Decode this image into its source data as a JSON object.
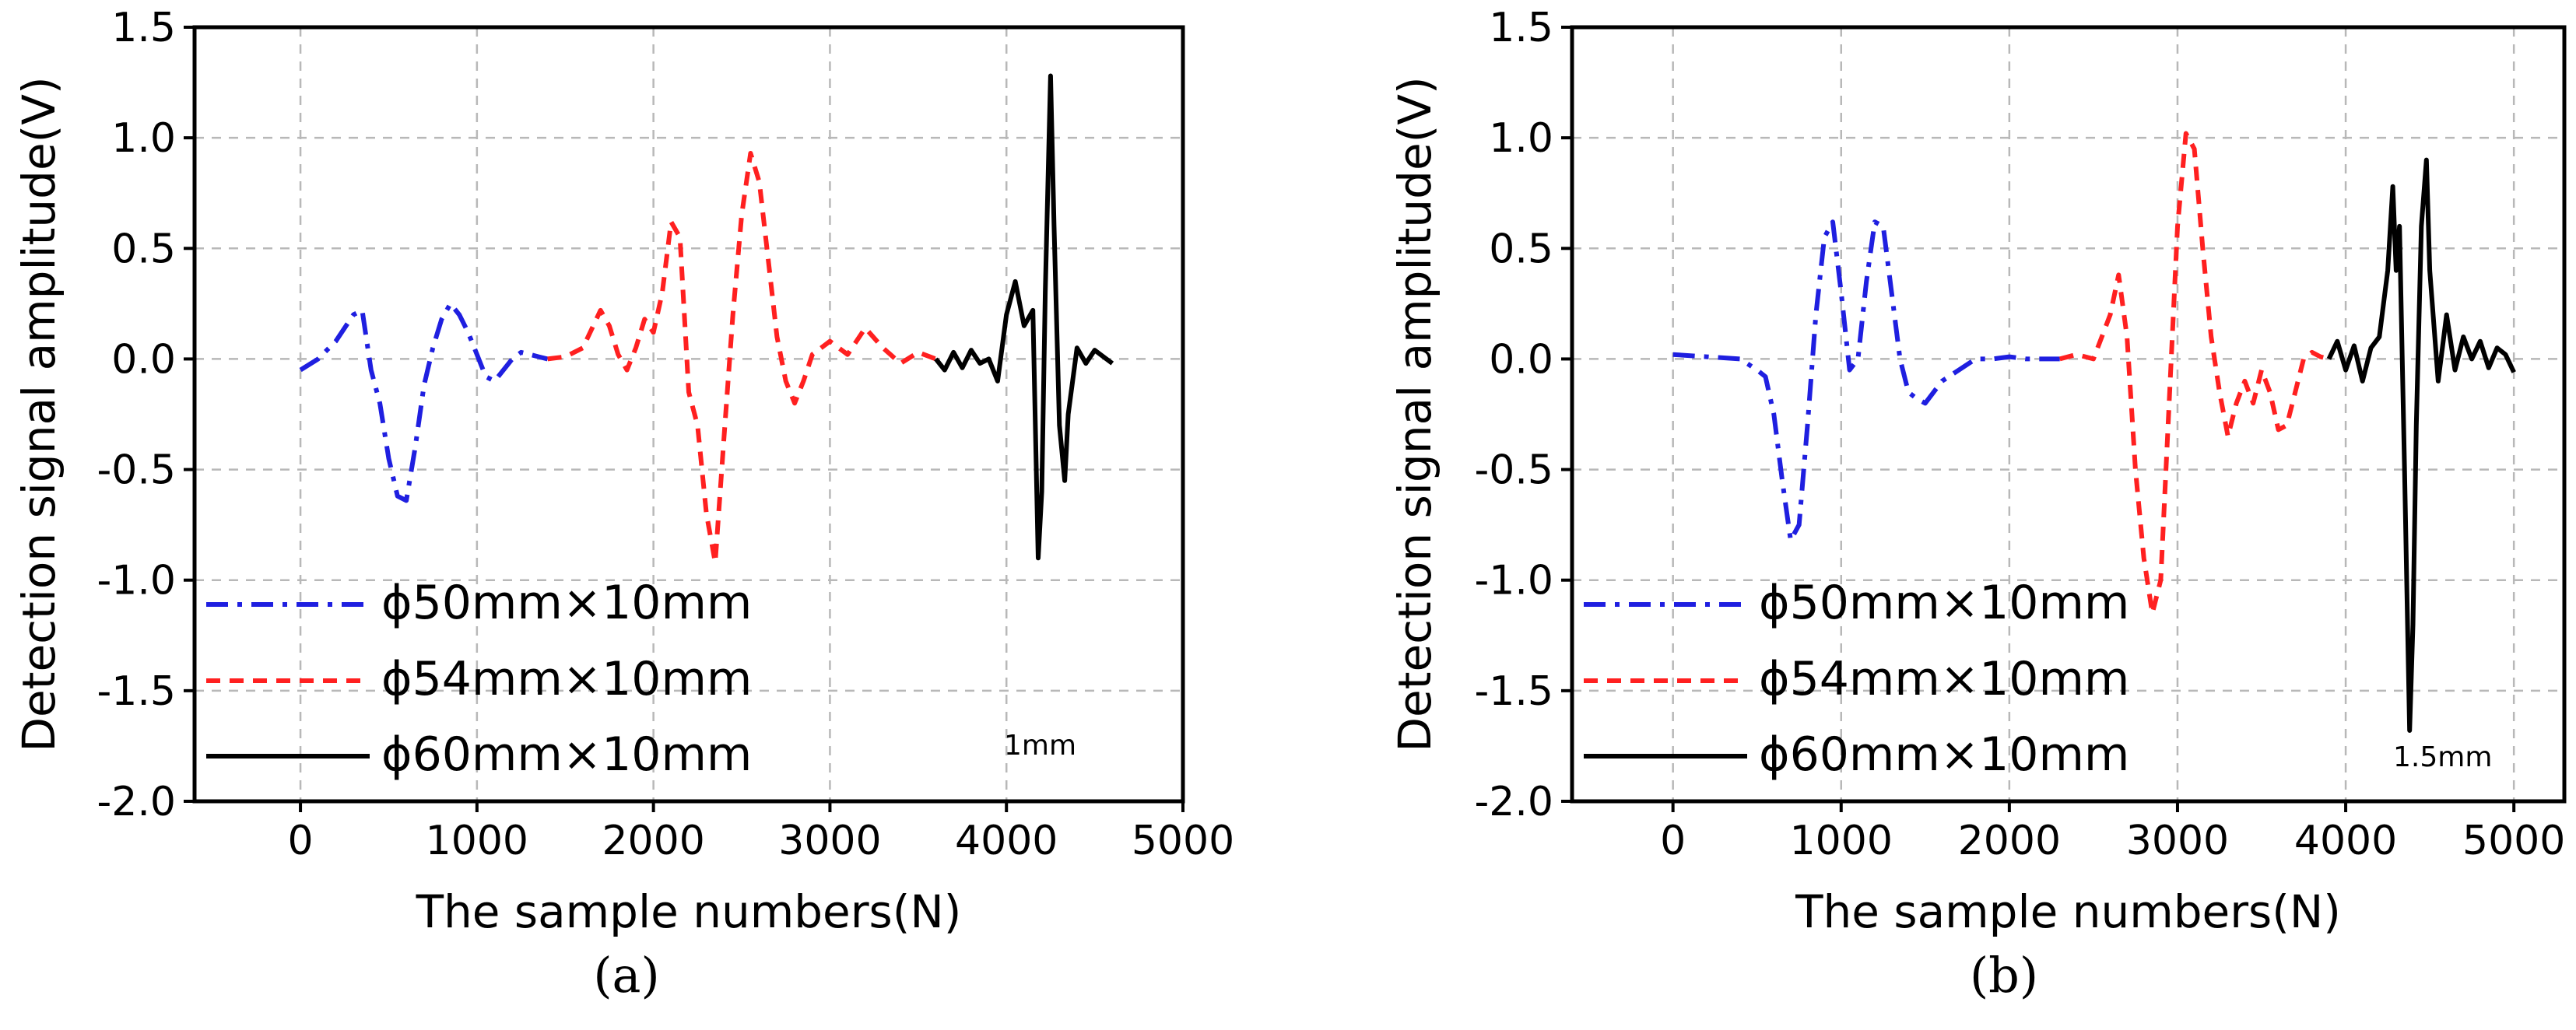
{
  "chart_data": [
    {
      "type": "line",
      "panel_label": "(a)",
      "title": "",
      "xlabel": "The sample numbers(N)",
      "ylabel": "Detection signal amplitude(V)",
      "xlim": [
        -600,
        5000
      ],
      "ylim": [
        -2.0,
        1.5
      ],
      "xticks": [
        0,
        1000,
        2000,
        3000,
        4000,
        5000
      ],
      "yticks": [
        -2.0,
        -1.5,
        -1.0,
        -0.5,
        0.0,
        0.5,
        1.0,
        1.5
      ],
      "xtick_labels": [
        "0",
        "1000",
        "2000",
        "3000",
        "4000",
        "5000"
      ],
      "ytick_labels": [
        "-2.0",
        "-1.5",
        "-1.0",
        "-0.5",
        "0.0",
        "0.5",
        "1.0",
        "1.5"
      ],
      "grid": true,
      "legend_position": "bottom-left",
      "annotation": "1mm",
      "series": [
        {
          "name": "ϕ50mm×10mm",
          "color": "#1f1fe0",
          "style": "dashdot",
          "x": [
            0,
            100,
            200,
            300,
            350,
            400,
            450,
            500,
            550,
            600,
            650,
            700,
            750,
            800,
            850,
            900,
            950,
            1000,
            1050,
            1100,
            1150,
            1200,
            1250,
            1300,
            1350,
            1400
          ],
          "y": [
            -0.05,
            0.0,
            0.08,
            0.2,
            0.22,
            -0.05,
            -0.2,
            -0.45,
            -0.62,
            -0.64,
            -0.4,
            -0.12,
            0.05,
            0.18,
            0.25,
            0.2,
            0.12,
            0.02,
            -0.08,
            -0.1,
            -0.05,
            0.0,
            0.03,
            0.02,
            0.01,
            0.0
          ]
        },
        {
          "name": "ϕ54mm×10mm",
          "color": "#ff2020",
          "style": "dashed",
          "x": [
            1400,
            1500,
            1600,
            1700,
            1750,
            1800,
            1850,
            1900,
            1950,
            2000,
            2050,
            2100,
            2150,
            2200,
            2250,
            2300,
            2350,
            2400,
            2450,
            2500,
            2550,
            2600,
            2650,
            2700,
            2750,
            2800,
            2850,
            2900,
            3000,
            3100,
            3200,
            3300,
            3400,
            3500,
            3600
          ],
          "y": [
            0.0,
            0.01,
            0.05,
            0.22,
            0.15,
            0.02,
            -0.05,
            0.05,
            0.18,
            0.12,
            0.3,
            0.62,
            0.55,
            -0.15,
            -0.3,
            -0.7,
            -0.92,
            -0.35,
            0.2,
            0.65,
            0.93,
            0.8,
            0.45,
            0.1,
            -0.1,
            -0.2,
            -0.1,
            0.02,
            0.08,
            0.02,
            0.14,
            0.05,
            -0.02,
            0.03,
            0.0
          ]
        },
        {
          "name": "ϕ60mm×10mm",
          "color": "#000000",
          "style": "solid",
          "x": [
            3600,
            3650,
            3700,
            3750,
            3800,
            3850,
            3900,
            3950,
            4000,
            4050,
            4100,
            4150,
            4180,
            4200,
            4220,
            4250,
            4270,
            4300,
            4330,
            4350,
            4400,
            4450,
            4500,
            4550,
            4600
          ],
          "y": [
            0.0,
            -0.05,
            0.03,
            -0.04,
            0.04,
            -0.02,
            0.0,
            -0.1,
            0.2,
            0.35,
            0.15,
            0.22,
            -0.9,
            -0.6,
            0.3,
            1.28,
            0.6,
            -0.3,
            -0.55,
            -0.25,
            0.05,
            -0.02,
            0.04,
            0.01,
            -0.02
          ]
        }
      ]
    },
    {
      "type": "line",
      "panel_label": "(b)",
      "title": "",
      "xlabel": "The sample numbers(N)",
      "ylabel": "Detection signal amplitude(V)",
      "xlim": [
        -600,
        5300
      ],
      "ylim": [
        -2.0,
        1.5
      ],
      "xticks": [
        0,
        1000,
        2000,
        3000,
        4000,
        5000
      ],
      "yticks": [
        -2.0,
        -1.5,
        -1.0,
        -0.5,
        0.0,
        0.5,
        1.0,
        1.5
      ],
      "xtick_labels": [
        "0",
        "1000",
        "2000",
        "3000",
        "4000",
        "5000"
      ],
      "ytick_labels": [
        "-2.0",
        "-1.5",
        "-1.0",
        "-0.5",
        "0.0",
        "0.5",
        "1.0",
        "1.5"
      ],
      "grid": true,
      "legend_position": "bottom-left",
      "annotation": "1.5mm",
      "series": [
        {
          "name": "ϕ50mm×10mm",
          "color": "#1f1fe0",
          "style": "dashdot",
          "x": [
            0,
            200,
            400,
            500,
            550,
            600,
            650,
            700,
            750,
            800,
            850,
            900,
            950,
            1000,
            1050,
            1100,
            1150,
            1200,
            1250,
            1300,
            1350,
            1400,
            1450,
            1500,
            1550,
            1600,
            1700,
            1800,
            1900,
            2000,
            2100,
            2200,
            2300
          ],
          "y": [
            0.02,
            0.01,
            0.0,
            -0.05,
            -0.08,
            -0.25,
            -0.55,
            -0.82,
            -0.75,
            -0.3,
            0.2,
            0.55,
            0.62,
            0.3,
            -0.05,
            0.0,
            0.35,
            0.62,
            0.6,
            0.3,
            0.0,
            -0.15,
            -0.18,
            -0.2,
            -0.15,
            -0.1,
            -0.05,
            0.0,
            0.0,
            0.01,
            0.0,
            0.0,
            0.0
          ]
        },
        {
          "name": "ϕ54mm×10mm",
          "color": "#ff2020",
          "style": "dashed",
          "x": [
            2300,
            2400,
            2500,
            2600,
            2650,
            2700,
            2750,
            2800,
            2850,
            2900,
            2950,
            3000,
            3050,
            3100,
            3150,
            3200,
            3250,
            3300,
            3350,
            3400,
            3450,
            3500,
            3550,
            3600,
            3650,
            3700,
            3750,
            3800,
            3850,
            3900
          ],
          "y": [
            0.0,
            0.02,
            0.0,
            0.2,
            0.38,
            0.1,
            -0.5,
            -0.9,
            -1.15,
            -1.0,
            -0.2,
            0.6,
            1.02,
            0.95,
            0.5,
            0.1,
            -0.15,
            -0.35,
            -0.2,
            -0.1,
            -0.2,
            -0.05,
            -0.15,
            -0.32,
            -0.3,
            -0.15,
            0.0,
            0.03,
            0.01,
            0.0
          ]
        },
        {
          "name": "ϕ60mm×10mm",
          "color": "#000000",
          "style": "solid",
          "x": [
            3900,
            3950,
            4000,
            4050,
            4100,
            4150,
            4200,
            4250,
            4280,
            4300,
            4320,
            4350,
            4380,
            4400,
            4420,
            4450,
            4480,
            4500,
            4550,
            4600,
            4650,
            4700,
            4750,
            4800,
            4850,
            4900,
            4950,
            5000
          ],
          "y": [
            0.0,
            0.08,
            -0.05,
            0.06,
            -0.1,
            0.05,
            0.1,
            0.4,
            0.78,
            0.4,
            0.6,
            -0.5,
            -1.68,
            -1.2,
            -0.3,
            0.6,
            0.9,
            0.4,
            -0.1,
            0.2,
            -0.05,
            0.1,
            0.0,
            0.08,
            -0.04,
            0.05,
            0.02,
            -0.06
          ]
        }
      ]
    }
  ]
}
